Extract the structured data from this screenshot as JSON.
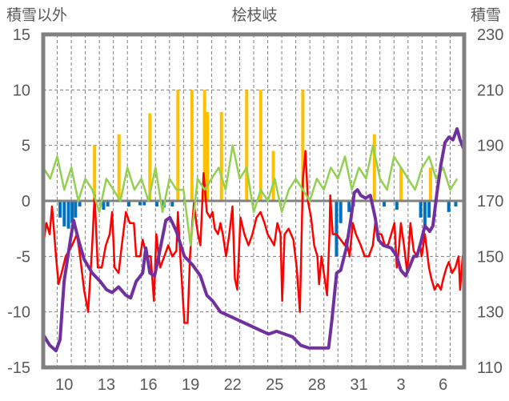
{
  "chart_data": {
    "type": "line",
    "title": "桧枝岐",
    "ylabel_left": "積雪以外",
    "ylabel_right": "積雪",
    "ylim_left": [
      -15,
      15
    ],
    "ylim_right": [
      110,
      230
    ],
    "yticks_left": [
      "15",
      "10",
      "5",
      "0",
      "-5",
      "-10",
      "-15"
    ],
    "yticks_right": [
      "230",
      "210",
      "190",
      "170",
      "150",
      "130",
      "110"
    ],
    "x_days": 30,
    "xticks": [
      {
        "day": 1,
        "label": "10"
      },
      {
        "day": 4,
        "label": "13"
      },
      {
        "day": 7,
        "label": "16"
      },
      {
        "day": 10,
        "label": "19"
      },
      {
        "day": 13,
        "label": "22"
      },
      {
        "day": 16,
        "label": "25"
      },
      {
        "day": 19,
        "label": "28"
      },
      {
        "day": 22,
        "label": "31"
      },
      {
        "day": 25,
        "label": "3"
      },
      {
        "day": 28,
        "label": "6"
      }
    ],
    "colors": {
      "snow_depth": "#7030a0",
      "red_series": "#ff0000",
      "green_series": "#92d050",
      "yellow_bars": "#ffc000",
      "blue_bars": "#0070c0",
      "frame": "#808080"
    },
    "series": [
      {
        "name": "snow_depth",
        "axis": "right",
        "points": [
          [
            0,
            121.8
          ],
          [
            0.46,
            118
          ],
          [
            0.91,
            116
          ],
          [
            1.2,
            120
          ],
          [
            1.49,
            141
          ],
          [
            1.94,
            156
          ],
          [
            2.17,
            163
          ],
          [
            2.51,
            156
          ],
          [
            2.91,
            149
          ],
          [
            3.49,
            144
          ],
          [
            4.06,
            141
          ],
          [
            4.51,
            138
          ],
          [
            4.91,
            137
          ],
          [
            5.37,
            139
          ],
          [
            5.89,
            136
          ],
          [
            6.23,
            135
          ],
          [
            6.63,
            141
          ],
          [
            7.09,
            144
          ],
          [
            7.31,
            153
          ],
          [
            7.6,
            144
          ],
          [
            7.94,
            143
          ],
          [
            8.23,
            150
          ],
          [
            8.74,
            163
          ],
          [
            9.03,
            164
          ],
          [
            9.49,
            159
          ],
          [
            10.06,
            150
          ],
          [
            10.63,
            147
          ],
          [
            11.2,
            143
          ],
          [
            11.66,
            136
          ],
          [
            12.06,
            134
          ],
          [
            12.63,
            130
          ],
          [
            13.49,
            128
          ],
          [
            14.34,
            126
          ],
          [
            15.2,
            124
          ],
          [
            16.06,
            122
          ],
          [
            16.63,
            123
          ],
          [
            17.2,
            122
          ],
          [
            17.77,
            121
          ],
          [
            18.34,
            118
          ],
          [
            18.91,
            117
          ],
          [
            19.77,
            117
          ],
          [
            20.34,
            117
          ],
          [
            20.57,
            127
          ],
          [
            20.91,
            144
          ],
          [
            21.2,
            145
          ],
          [
            21.6,
            153
          ],
          [
            21.94,
            164
          ],
          [
            22.17,
            173
          ],
          [
            22.4,
            174
          ],
          [
            22.63,
            172
          ],
          [
            22.97,
            171
          ],
          [
            23.31,
            172
          ],
          [
            23.66,
            164
          ],
          [
            23.89,
            156
          ],
          [
            24.23,
            154
          ],
          [
            24.8,
            153
          ],
          [
            25.2,
            150
          ],
          [
            25.49,
            145
          ],
          [
            25.83,
            143
          ],
          [
            26.17,
            147
          ],
          [
            26.4,
            150
          ],
          [
            26.63,
            150
          ],
          [
            26.91,
            155
          ],
          [
            27.2,
            161
          ],
          [
            27.54,
            159
          ],
          [
            27.77,
            161
          ],
          [
            28.06,
            173
          ],
          [
            28.34,
            183
          ],
          [
            28.63,
            191
          ],
          [
            28.91,
            193
          ],
          [
            29.2,
            192
          ],
          [
            29.49,
            196
          ],
          [
            29.71,
            192
          ],
          [
            29.94,
            189
          ]
        ]
      },
      {
        "name": "red_series",
        "axis": "left",
        "points": [
          [
            0,
            -4
          ],
          [
            0.23,
            -2
          ],
          [
            0.46,
            -3
          ],
          [
            0.63,
            -0.5
          ],
          [
            0.91,
            -5
          ],
          [
            1.09,
            -7.5
          ],
          [
            1.31,
            -6.5
          ],
          [
            1.6,
            -5
          ],
          [
            2.06,
            -4
          ],
          [
            2.4,
            -3
          ],
          [
            2.63,
            -5
          ],
          [
            2.91,
            -8
          ],
          [
            3.2,
            -10
          ],
          [
            3.49,
            -4
          ],
          [
            3.66,
            0.5
          ],
          [
            3.89,
            -6
          ],
          [
            4.17,
            -6
          ],
          [
            4.46,
            -4
          ],
          [
            4.74,
            -3
          ],
          [
            4.91,
            -1
          ],
          [
            5.09,
            -6
          ],
          [
            5.37,
            -6.5
          ],
          [
            5.6,
            -4
          ],
          [
            5.89,
            -1
          ],
          [
            6.17,
            -2
          ],
          [
            6.46,
            -2
          ],
          [
            6.63,
            -5
          ],
          [
            6.91,
            -5
          ],
          [
            7.09,
            -3.5
          ],
          [
            7.37,
            -5
          ],
          [
            7.66,
            -5
          ],
          [
            7.89,
            -9
          ],
          [
            8.06,
            -3
          ],
          [
            8.23,
            -5
          ],
          [
            8.34,
            -6
          ],
          [
            8.63,
            -5
          ],
          [
            8.91,
            -4
          ],
          [
            9.2,
            -5
          ],
          [
            9.49,
            -4.5
          ],
          [
            9.6,
            -1
          ],
          [
            9.77,
            -5
          ],
          [
            10.06,
            -11
          ],
          [
            10.29,
            -11
          ],
          [
            10.46,
            -5
          ],
          [
            10.63,
            -2
          ],
          [
            10.74,
            -0.2
          ],
          [
            10.91,
            -2
          ],
          [
            11.03,
            -3
          ],
          [
            11.2,
            -4
          ],
          [
            11.43,
            2.5
          ],
          [
            11.66,
            -1
          ],
          [
            11.89,
            -1.5
          ],
          [
            12.06,
            -1
          ],
          [
            12.23,
            -2.5
          ],
          [
            12.46,
            -3
          ],
          [
            12.63,
            -2
          ],
          [
            12.8,
            -3
          ],
          [
            13.03,
            -5
          ],
          [
            13.26,
            -3
          ],
          [
            13.49,
            -0.5
          ],
          [
            13.66,
            -7
          ],
          [
            13.83,
            -8
          ],
          [
            14.06,
            -1.5
          ],
          [
            14.34,
            -3
          ],
          [
            14.63,
            -4
          ],
          [
            14.91,
            -3
          ],
          [
            15.2,
            -1.5
          ],
          [
            15.49,
            -1
          ],
          [
            15.77,
            -2
          ],
          [
            16,
            -3
          ],
          [
            16.23,
            -3.5
          ],
          [
            16.46,
            -4
          ],
          [
            16.69,
            -2
          ],
          [
            16.91,
            -3
          ],
          [
            17.03,
            -9
          ],
          [
            17.2,
            -3
          ],
          [
            17.49,
            -2.5
          ],
          [
            17.83,
            -3.5
          ],
          [
            18.06,
            -6
          ],
          [
            18.29,
            -10
          ],
          [
            18.51,
            2
          ],
          [
            18.69,
            4.5
          ],
          [
            18.86,
            0
          ],
          [
            19.09,
            -1.5
          ],
          [
            19.31,
            -4
          ],
          [
            19.54,
            -5
          ],
          [
            19.66,
            -7.5
          ],
          [
            19.83,
            -5
          ],
          [
            20.06,
            -7
          ],
          [
            20.23,
            -8.5
          ],
          [
            20.4,
            -3
          ],
          [
            20.46,
            0.5
          ],
          [
            20.63,
            -3
          ],
          [
            20.91,
            -3
          ],
          [
            21.2,
            -3.5
          ],
          [
            21.49,
            -4
          ],
          [
            21.6,
            -3.5
          ],
          [
            21.83,
            -5
          ],
          [
            22.06,
            -2
          ],
          [
            22.29,
            -3
          ],
          [
            22.63,
            -4
          ],
          [
            22.91,
            -5
          ],
          [
            23.2,
            -5
          ],
          [
            23.49,
            -4
          ],
          [
            23.66,
            -2
          ],
          [
            23.89,
            -3
          ],
          [
            24.11,
            -3
          ],
          [
            24.34,
            -4
          ],
          [
            24.57,
            -4
          ],
          [
            24.8,
            -3
          ],
          [
            25.03,
            -2
          ],
          [
            25.2,
            -6
          ],
          [
            25.37,
            -4
          ],
          [
            25.49,
            -2
          ],
          [
            25.71,
            -4
          ],
          [
            25.94,
            -6.5
          ],
          [
            26.17,
            -2
          ],
          [
            26.4,
            -4.5
          ],
          [
            26.63,
            -5
          ],
          [
            26.86,
            -4
          ],
          [
            26.97,
            -5
          ],
          [
            27.2,
            -3
          ],
          [
            27.49,
            -6
          ],
          [
            27.66,
            -7
          ],
          [
            27.89,
            -8
          ],
          [
            28.11,
            -7.5
          ],
          [
            28.34,
            -8
          ],
          [
            28.51,
            -7
          ],
          [
            28.74,
            -6
          ],
          [
            28.91,
            -5.5
          ],
          [
            29.14,
            -6.5
          ],
          [
            29.37,
            -6
          ],
          [
            29.6,
            -5
          ],
          [
            29.71,
            -8
          ],
          [
            29.89,
            -5
          ],
          [
            30,
            -6
          ]
        ]
      },
      {
        "name": "green_series",
        "axis": "left",
        "step": 0.5,
        "values": [
          3,
          2,
          4,
          1,
          3,
          0,
          2,
          1,
          -1,
          2,
          1,
          0,
          3,
          1,
          2,
          0,
          3,
          -1,
          2,
          1,
          1,
          -4,
          2,
          1,
          2,
          3,
          1,
          5,
          2,
          3,
          -1,
          1,
          0,
          2,
          -1,
          1,
          2,
          1,
          0,
          2,
          1,
          3,
          2,
          4,
          1,
          3,
          2,
          5,
          2,
          1,
          4,
          3,
          2,
          1,
          3,
          4,
          2,
          3,
          1,
          2
        ]
      },
      {
        "name": "yellow_bars",
        "axis": "left",
        "type": "bar",
        "points": [
          [
            3.66,
            5
          ],
          [
            5.4,
            6
          ],
          [
            7.6,
            7.9
          ],
          [
            9.6,
            10
          ],
          [
            10.6,
            10
          ],
          [
            11.5,
            10
          ],
          [
            11.7,
            8
          ],
          [
            12.7,
            8
          ],
          [
            14.5,
            10
          ],
          [
            15.5,
            10
          ],
          [
            16.4,
            4.5
          ],
          [
            18.5,
            10
          ],
          [
            23.6,
            6
          ],
          [
            25.5,
            3
          ],
          [
            27.6,
            3
          ]
        ]
      },
      {
        "name": "blue_bars",
        "axis": "left",
        "type": "bar",
        "points": [
          [
            1.2,
            -1.5
          ],
          [
            1.5,
            -2.3
          ],
          [
            1.8,
            -2.5
          ],
          [
            2.06,
            -2
          ],
          [
            2.3,
            -1.5
          ],
          [
            2.6,
            -0.5
          ],
          [
            4.3,
            -0.8
          ],
          [
            4.6,
            -0.5
          ],
          [
            6.1,
            -0.5
          ],
          [
            6.9,
            -0.4
          ],
          [
            7.2,
            -0.4
          ],
          [
            8.1,
            -0.5
          ],
          [
            8.6,
            -0.6
          ],
          [
            9.2,
            -0.5
          ],
          [
            20.9,
            -5
          ],
          [
            21.2,
            -2
          ],
          [
            21.8,
            -1
          ],
          [
            22.1,
            -0.5
          ],
          [
            24.3,
            -0.5
          ],
          [
            25.2,
            -0.8
          ],
          [
            26.9,
            -1.5
          ],
          [
            27.2,
            -2.3
          ],
          [
            27.5,
            -1.5
          ],
          [
            28.9,
            -1
          ],
          [
            29.4,
            -0.5
          ]
        ]
      }
    ]
  }
}
